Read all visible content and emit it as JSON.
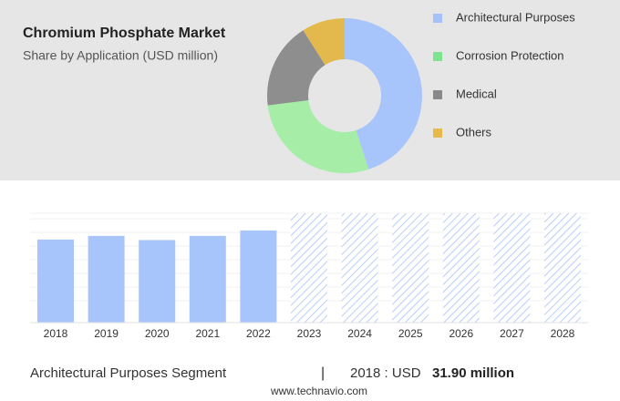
{
  "chart_data": [
    {
      "type": "donut",
      "title": "Chromium Phosphate Market",
      "subtitle": "Share by Application (USD million)",
      "categories": [
        "Architectural Purposes",
        "Corrosion Protection",
        "Medical",
        "Others"
      ],
      "values": [
        45,
        28,
        18,
        9
      ],
      "colors": [
        "#a8c5fb",
        "#a6eea8",
        "#8e8e8e",
        "#e3b94d"
      ],
      "legend_colors": [
        "#a4c2f9",
        "#7de38f",
        "#8a8a8a",
        "#e8b94a"
      ]
    },
    {
      "type": "bar",
      "categories": [
        "2018",
        "2019",
        "2020",
        "2021",
        "2022",
        "2023",
        "2024",
        "2025",
        "2026",
        "2027",
        "2028"
      ],
      "values": [
        31.9,
        33.3,
        31.7,
        33.3,
        35.4,
        null,
        null,
        null,
        null,
        null,
        null
      ],
      "color": "#a8c5fb",
      "forecast_color": "#b9cdf5",
      "ylim": [
        0,
        42
      ]
    }
  ],
  "footer": {
    "segment": "Architectural Purposes Segment",
    "separator": "|",
    "year": "2018 : USD",
    "value": "31.90 million",
    "source": "www.technavio.com"
  }
}
